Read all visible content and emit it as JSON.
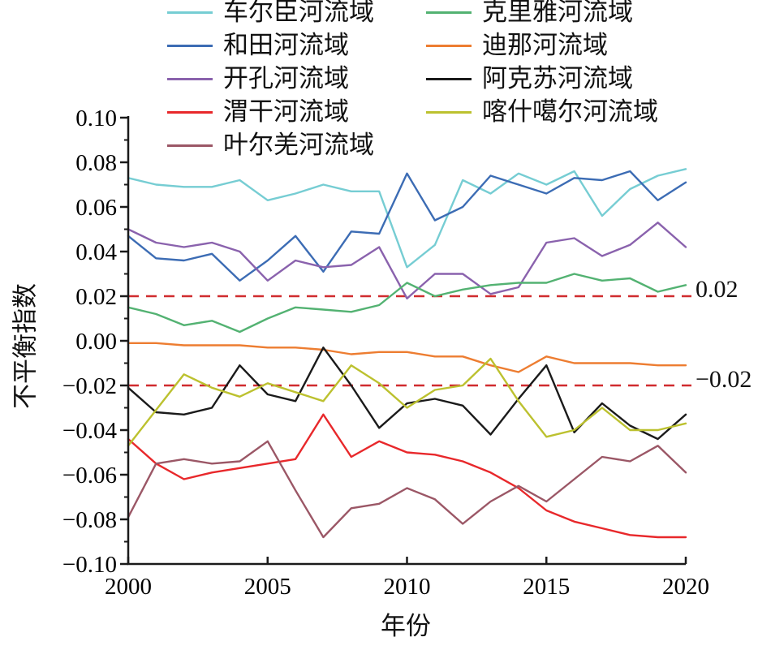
{
  "chart_data": {
    "type": "line",
    "title": "",
    "xlabel": "年份",
    "ylabel": "不平衡指数",
    "xlim": [
      2000,
      2020
    ],
    "ylim": [
      -0.1,
      0.1
    ],
    "grid": false,
    "legend_position": "top",
    "axis_color": "#1a1a1a",
    "x": [
      2000,
      2001,
      2002,
      2003,
      2004,
      2005,
      2006,
      2007,
      2008,
      2009,
      2010,
      2011,
      2012,
      2013,
      2014,
      2015,
      2016,
      2017,
      2018,
      2019,
      2020
    ],
    "x_ticks": [
      2000,
      2005,
      2010,
      2015,
      2020
    ],
    "x_tick_labels": [
      "2000",
      "2005",
      "2010",
      "2015",
      "2020"
    ],
    "y_ticks": [
      0.1,
      0.08,
      0.06,
      0.04,
      0.02,
      0.0,
      -0.02,
      -0.04,
      -0.06,
      -0.08,
      -0.1
    ],
    "y_tick_labels": [
      "0.10",
      "0.08",
      "0.06",
      "0.04",
      "0.02",
      "0.00",
      "−0.02",
      "−0.04",
      "−0.06",
      "−0.08",
      "−0.10"
    ],
    "y_minor_ticks": [
      0.09,
      0.07,
      0.05,
      0.03,
      0.01,
      -0.01,
      -0.03,
      -0.05,
      -0.07,
      -0.09
    ],
    "reference_lines": [
      {
        "y": 0.02,
        "label": "0.02",
        "style": "dashed",
        "color": "#d02c2f"
      },
      {
        "y": -0.02,
        "label": "−0.02",
        "style": "dashed",
        "color": "#d02c2f"
      }
    ],
    "series": [
      {
        "name": "车尔臣河流域",
        "color": "#76cdd3",
        "values": [
          0.073,
          0.07,
          0.069,
          0.069,
          0.072,
          0.063,
          0.066,
          0.07,
          0.067,
          0.067,
          0.033,
          0.043,
          0.072,
          0.066,
          0.075,
          0.07,
          0.076,
          0.056,
          0.068,
          0.074,
          0.077
        ]
      },
      {
        "name": "和田河流域",
        "color": "#3c6cb4",
        "values": [
          0.047,
          0.037,
          0.036,
          0.039,
          0.027,
          0.036,
          0.047,
          0.031,
          0.049,
          0.048,
          0.075,
          0.054,
          0.06,
          0.074,
          0.07,
          0.066,
          0.073,
          0.072,
          0.076,
          0.063,
          0.071
        ]
      },
      {
        "name": "开孔河流域",
        "color": "#8a62ad",
        "values": [
          0.05,
          0.044,
          0.042,
          0.044,
          0.04,
          0.027,
          0.036,
          0.033,
          0.034,
          0.042,
          0.019,
          0.03,
          0.03,
          0.021,
          0.024,
          0.044,
          0.046,
          0.038,
          0.043,
          0.053,
          0.042
        ]
      },
      {
        "name": "渭干河流域",
        "color": "#e8282b",
        "values": [
          -0.044,
          -0.055,
          -0.062,
          -0.059,
          -0.057,
          -0.055,
          -0.053,
          -0.033,
          -0.052,
          -0.045,
          -0.05,
          -0.051,
          -0.054,
          -0.059,
          -0.066,
          -0.076,
          -0.081,
          -0.084,
          -0.087,
          -0.088,
          -0.088
        ]
      },
      {
        "name": "叶尔羌河流域",
        "color": "#9b5766",
        "values": [
          -0.079,
          -0.055,
          -0.053,
          -0.055,
          -0.054,
          -0.045,
          -0.067,
          -0.088,
          -0.075,
          -0.073,
          -0.066,
          -0.071,
          -0.082,
          -0.072,
          -0.065,
          -0.072,
          -0.062,
          -0.052,
          -0.054,
          -0.047,
          -0.059
        ]
      },
      {
        "name": "克里雅河流域",
        "color": "#53b272",
        "values": [
          0.015,
          0.012,
          0.007,
          0.009,
          0.004,
          0.01,
          0.015,
          0.014,
          0.013,
          0.016,
          0.026,
          0.02,
          0.023,
          0.025,
          0.026,
          0.026,
          0.03,
          0.027,
          0.028,
          0.022,
          0.025
        ]
      },
      {
        "name": "迪那河流域",
        "color": "#ed7d31",
        "values": [
          -0.001,
          -0.001,
          -0.002,
          -0.002,
          -0.002,
          -0.003,
          -0.003,
          -0.004,
          -0.006,
          -0.005,
          -0.005,
          -0.007,
          -0.007,
          -0.011,
          -0.014,
          -0.007,
          -0.01,
          -0.01,
          -0.01,
          -0.011,
          -0.011
        ]
      },
      {
        "name": "阿克苏河流域",
        "color": "#1a1a1a",
        "values": [
          -0.021,
          -0.032,
          -0.033,
          -0.03,
          -0.011,
          -0.024,
          -0.027,
          -0.003,
          -0.02,
          -0.039,
          -0.028,
          -0.026,
          -0.029,
          -0.042,
          -0.026,
          -0.011,
          -0.041,
          -0.028,
          -0.038,
          -0.044,
          -0.033
        ]
      },
      {
        "name": "喀什噶尔河流域",
        "color": "#bcc12f",
        "values": [
          -0.047,
          -0.031,
          -0.015,
          -0.021,
          -0.025,
          -0.019,
          -0.023,
          -0.027,
          -0.011,
          -0.019,
          -0.03,
          -0.022,
          -0.02,
          -0.008,
          -0.027,
          -0.043,
          -0.04,
          -0.03,
          -0.04,
          -0.04,
          -0.037
        ]
      }
    ]
  }
}
